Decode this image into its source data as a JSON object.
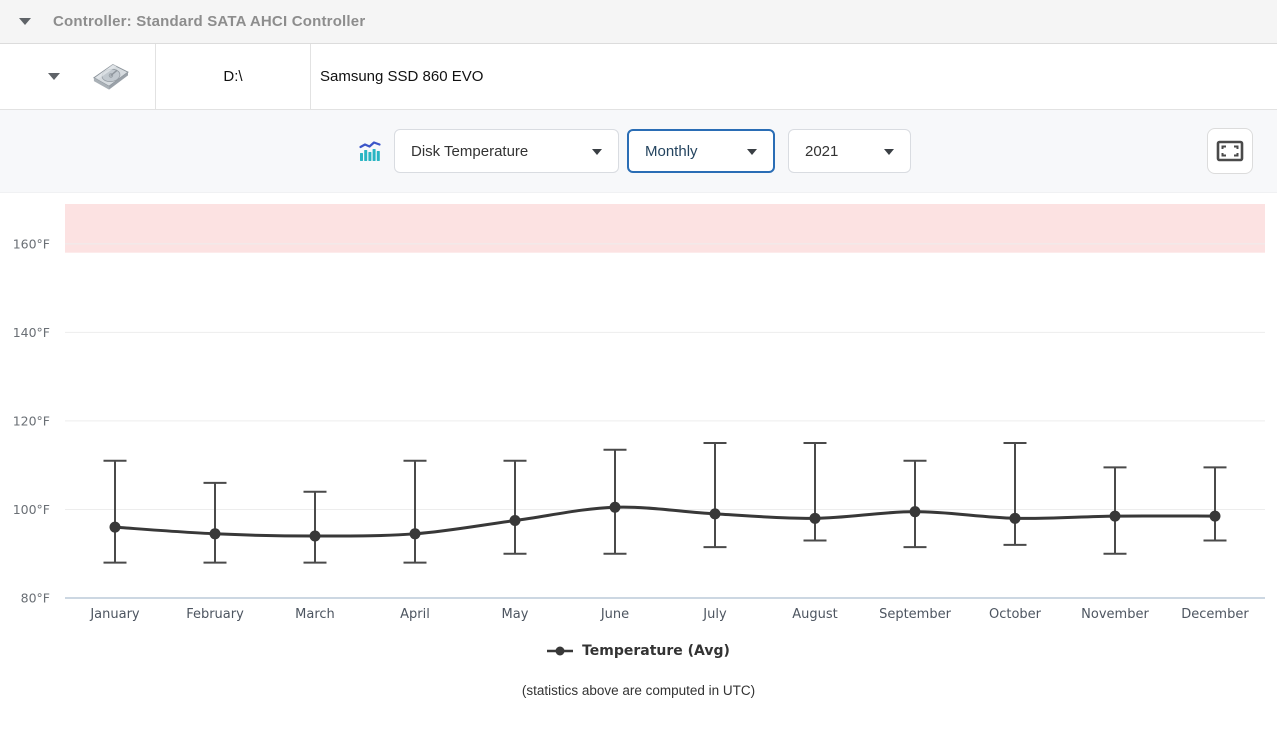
{
  "header": {
    "title": "Controller: Standard SATA AHCI Controller"
  },
  "disk": {
    "drive": "D:\\",
    "model": "Samsung SSD 860 EVO"
  },
  "toolbar": {
    "chart_type": "Disk Temperature",
    "period": "Monthly",
    "year": "2021",
    "icons": [
      "chart-icon",
      "fullscreen-icon"
    ]
  },
  "legend": {
    "label": "Temperature (Avg)"
  },
  "footer": {
    "note": "(statistics above are computed in UTC)"
  },
  "colors": {
    "accent_blue": "#2a6db5",
    "warning_zone": "#fce2e2",
    "line": "#383838",
    "error_bar": "#4a4a4a",
    "axis_line": "#ccd7e2",
    "gridline": "#ededed",
    "icon_teal": "#2ab5c3",
    "icon_blue": "#3c55c8",
    "title_gray": "#8d8d8d"
  },
  "chart_data": {
    "type": "line",
    "categories": [
      "January",
      "February",
      "March",
      "April",
      "May",
      "June",
      "July",
      "August",
      "September",
      "October",
      "November",
      "December"
    ],
    "series": [
      {
        "name": "Temperature (Avg)",
        "values": [
          96,
          94.5,
          94,
          94.5,
          97.5,
          100.5,
          99,
          98,
          99.5,
          98,
          98.5,
          98.5
        ],
        "error_high": [
          111,
          106,
          104,
          111,
          111,
          113.5,
          115,
          115,
          111,
          115,
          109.5,
          109.5
        ],
        "error_low": [
          88,
          88,
          88,
          88,
          90,
          90,
          91.5,
          93,
          91.5,
          92,
          90,
          93
        ]
      }
    ],
    "unit": "°F",
    "yticks": [
      160,
      140,
      120,
      100,
      80
    ],
    "ylim": [
      80,
      169
    ],
    "warning_zone": {
      "above": 158
    },
    "grid": true,
    "legend_position": "bottom"
  }
}
